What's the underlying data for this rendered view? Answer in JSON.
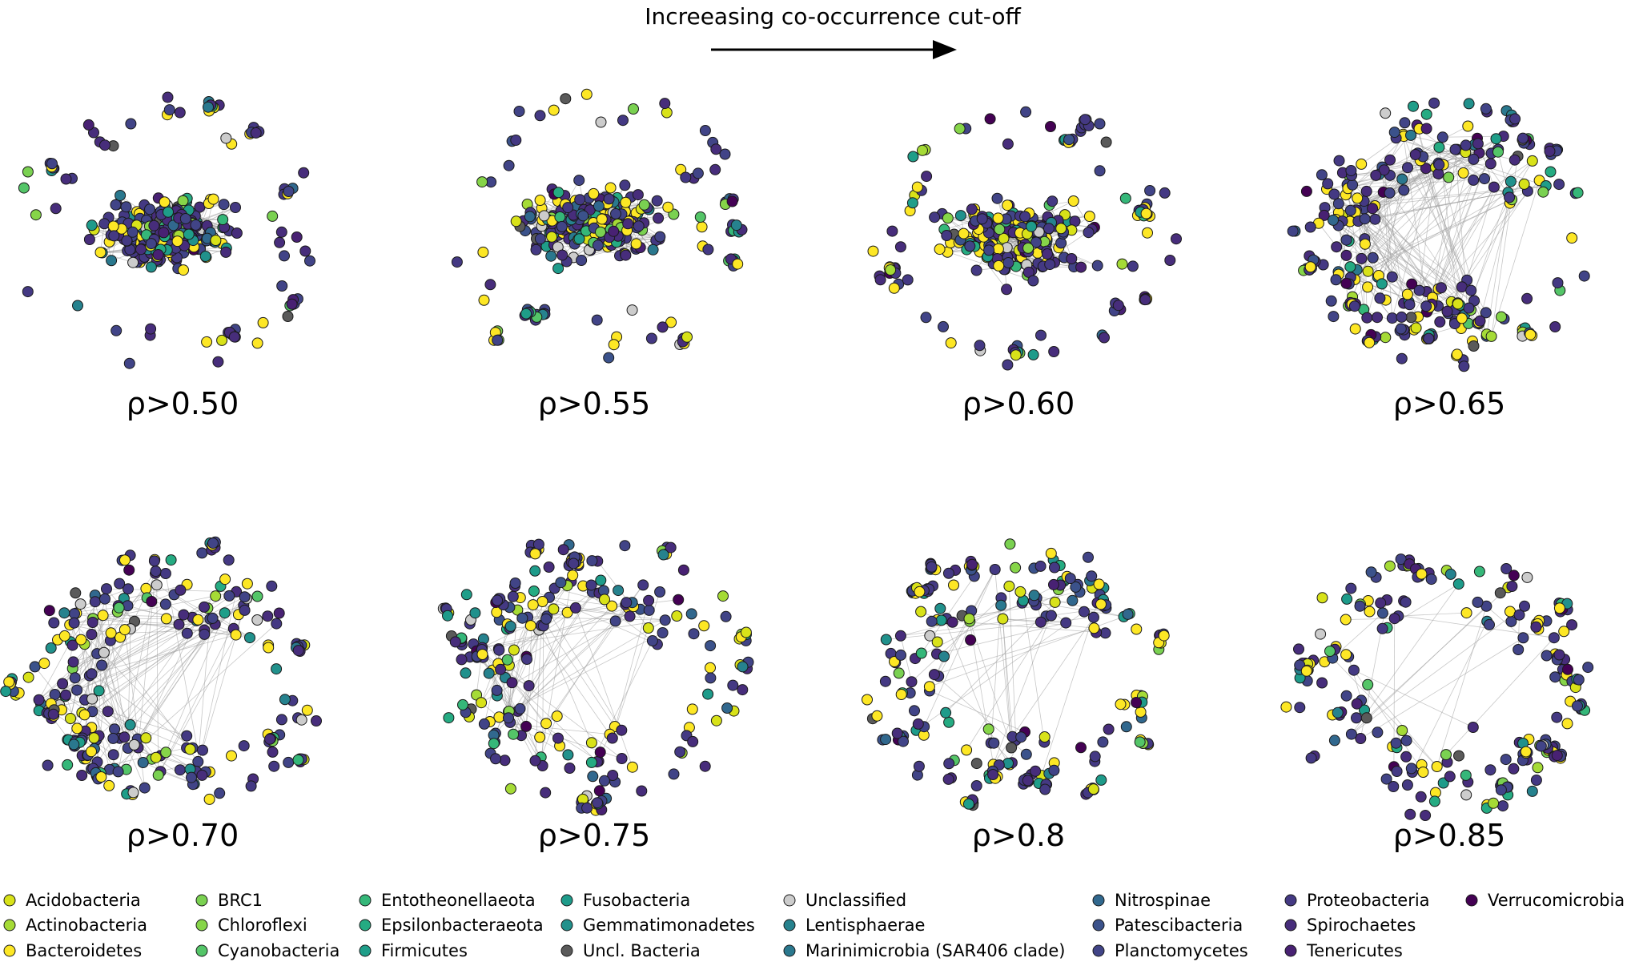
{
  "header": {
    "title": "Increeasing co-occurrence cut-off"
  },
  "panels": [
    {
      "label": "ρ>0.50",
      "cutoff": 0.5
    },
    {
      "label": "ρ>0.55",
      "cutoff": 0.55
    },
    {
      "label": "ρ>0.60",
      "cutoff": 0.6
    },
    {
      "label": "ρ>0.65",
      "cutoff": 0.65
    },
    {
      "label": "ρ>0.70",
      "cutoff": 0.7
    },
    {
      "label": "ρ>0.75",
      "cutoff": 0.75
    },
    {
      "label": "ρ>0.8",
      "cutoff": 0.8
    },
    {
      "label": "ρ>0.85",
      "cutoff": 0.85
    }
  ],
  "legend": [
    {
      "name": "Acidobacteria",
      "color": "#d8e219"
    },
    {
      "name": "Actinobacteria",
      "color": "#a5db36"
    },
    {
      "name": "Bacteroidetes",
      "color": "#fde725"
    },
    {
      "name": "BRC1",
      "color": "#7ad151"
    },
    {
      "name": "Chloroflexi",
      "color": "#86d549"
    },
    {
      "name": "Cyanobacteria",
      "color": "#54c568"
    },
    {
      "name": "Entotheonellaeota",
      "color": "#35b779"
    },
    {
      "name": "Epsilonbacteraeota",
      "color": "#25ab82"
    },
    {
      "name": "Firmicutes",
      "color": "#1f9e89"
    },
    {
      "name": "Fusobacteria",
      "color": "#1e9b8a"
    },
    {
      "name": "Gemmatimonadetes",
      "color": "#21918c"
    },
    {
      "name": "Uncl. Bacteria",
      "color": "#5a5a5a"
    },
    {
      "name": "Unclassified",
      "color": "#cccccc"
    },
    {
      "name": "Lentisphaerae",
      "color": "#26828e"
    },
    {
      "name": "Marinimicrobia  (SAR406 clade)",
      "color": "#2a788e"
    },
    {
      "name": "Nitrospinae",
      "color": "#31688e"
    },
    {
      "name": "Patescibacteria",
      "color": "#3b528b"
    },
    {
      "name": "Planctomycetes",
      "color": "#414487"
    },
    {
      "name": "Proteobacteria",
      "color": "#443983"
    },
    {
      "name": "Spirochaetes",
      "color": "#472d7b"
    },
    {
      "name": "Tenericutes",
      "color": "#482173"
    },
    {
      "name": "Verrucomicrobia",
      "color": "#440154"
    }
  ]
}
